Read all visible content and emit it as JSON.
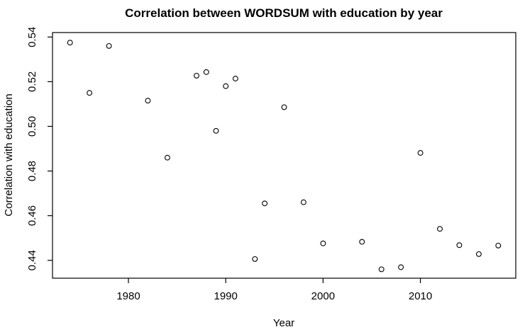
{
  "colors": {
    "background": "#ffffff",
    "foreground": "#000000"
  },
  "chart_data": {
    "type": "scatter",
    "title": "Correlation between WORDSUM with education by year",
    "xlabel": "Year",
    "ylabel": "Correlation with education",
    "marker": "open-circle",
    "grid": false,
    "legend": null,
    "xlim": [
      1972.2,
      2019.8
    ],
    "ylim": [
      0.432,
      0.542
    ],
    "xticks": [
      1980,
      1990,
      2000,
      2010
    ],
    "xtick_labels": [
      "1980",
      "1990",
      "2000",
      "2010"
    ],
    "yticks": [
      0.44,
      0.46,
      0.48,
      0.5,
      0.52,
      0.54
    ],
    "ytick_labels": [
      "0.44",
      "0.46",
      "0.48",
      "0.50",
      "0.52",
      "0.54"
    ],
    "series": [
      {
        "name": "correlation_by_year",
        "x": [
          1974,
          1976,
          1978,
          1982,
          1984,
          1987,
          1988,
          1989,
          1990,
          1991,
          1993,
          1994,
          1996,
          1998,
          2000,
          2004,
          2006,
          2008,
          2010,
          2012,
          2014,
          2016,
          2018
        ],
        "y": [
          0.5375,
          0.515,
          0.536,
          0.5115,
          0.486,
          0.5227,
          0.5243,
          0.498,
          0.518,
          0.5214,
          0.4406,
          0.4655,
          0.5086,
          0.466,
          0.4476,
          0.4483,
          0.436,
          0.4369,
          0.4881,
          0.4541,
          0.4468,
          0.4428,
          0.4466
        ]
      }
    ]
  }
}
